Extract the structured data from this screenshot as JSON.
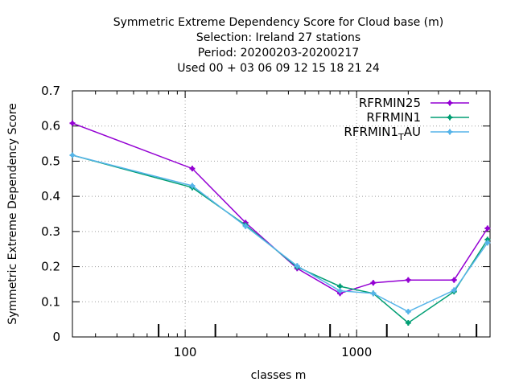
{
  "chart_data": {
    "type": "line",
    "title_lines": [
      "Symmetric Extreme Dependency Score  for Cloud base (m)",
      "Selection: Ireland      27 stations",
      "Period: 20200203-20200217",
      "Used  00 + 03 06 09 12 15 18 21 24"
    ],
    "xlabel": "classes m",
    "ylabel": "Symmetric Extreme Dependency Score",
    "x_scale": "log",
    "xlim": [
      22,
      6000
    ],
    "ylim": [
      0,
      0.7
    ],
    "grid": true,
    "legend_position": "top-right",
    "x_ticks": [
      {
        "value": 100,
        "label": "100"
      },
      {
        "value": 1000,
        "label": "1000"
      }
    ],
    "y_ticks": [
      {
        "value": 0,
        "label": "0"
      },
      {
        "value": 0.1,
        "label": "0.1"
      },
      {
        "value": 0.2,
        "label": "0.2"
      },
      {
        "value": 0.3,
        "label": "0.3"
      },
      {
        "value": 0.4,
        "label": "0.4"
      },
      {
        "value": 0.5,
        "label": "0.5"
      },
      {
        "value": 0.6,
        "label": "0.6"
      },
      {
        "value": 0.7,
        "label": "0.7"
      }
    ],
    "x": [
      22,
      110,
      225,
      450,
      800,
      1250,
      2000,
      3700,
      5800
    ],
    "series": [
      {
        "name": "RFRMIN25",
        "name_main": "RFRMIN25",
        "name_sub": "",
        "name_tail": "",
        "color": "#9400d3",
        "values": [
          0.608,
          0.479,
          0.325,
          0.195,
          0.124,
          0.154,
          0.162,
          0.162,
          0.309
        ]
      },
      {
        "name": "RFRMIN1",
        "name_main": "RFRMIN1",
        "name_sub": "",
        "name_tail": "",
        "color": "#009e73",
        "values": [
          0.517,
          0.425,
          0.318,
          0.199,
          0.144,
          0.124,
          0.04,
          0.129,
          0.277
        ]
      },
      {
        "name": "RFRMIN1_TAU",
        "name_main": "RFRMIN1",
        "name_sub": "T",
        "name_tail": "AU",
        "color": "#56b4e9",
        "values": [
          0.517,
          0.43,
          0.315,
          0.202,
          0.131,
          0.124,
          0.072,
          0.133,
          0.268
        ]
      }
    ]
  }
}
